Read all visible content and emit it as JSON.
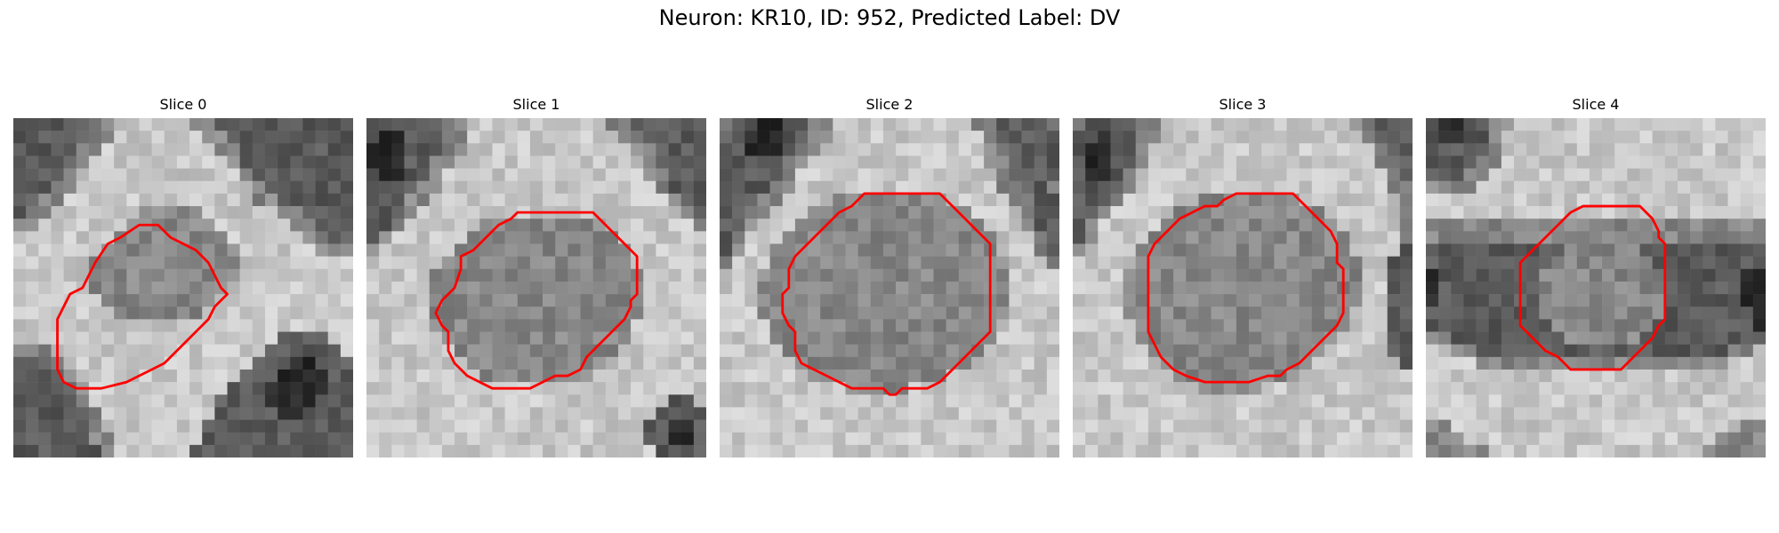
{
  "figure": {
    "title": "Neuron: KR10, ID: 952, Predicted Label: DV"
  },
  "slices": [
    {
      "title": "Slice 0",
      "image": "grayscale-microscopy-slice",
      "contour_color": "#ff0000",
      "seed": 11,
      "pattern": [
        "LLLLLLMMHHHHHHMMLLLLLLLLLLL",
        "LLLLLLMMHHHHHHHMMLLLLLLLLLL",
        "LLLLLMMHHHHHHHHHMMLLLLLLLLL",
        "LLLLLMHHHHHHHHHHHMLLLLLLLLL",
        "LLLLMHHHHHHHHHHHHHMLLLLLLLL",
        "LLLMMHHHHHHHHHHHHHHMLLLLLLL",
        "LLMMHHHHHHHHHHHHHHHMMLLLLLL",
        "LMMHHHHHHHMMMMMHHHHHHMMLLLL",
        "MMHHHHHHHMMMMMMMHHHHHHMMLLL",
        "HHHHHHHHMMMMMMMMMHHHHHHMMLL",
        "HHHHHHHMMMMMMMMMMMHHHHHHMMM",
        "HHHHHHMMMMMMMMMMMMHHHHHHHHH",
        "HHHHHHMMMMMMMMMMMMHHHHHHHHH",
        "HHHHHHMMMMMMMMMMMHHHHHHHHHH",
        "HHHHHHHMMMMMMMMMHHHHHHHHHHH",
        "HHHHHHHHMMMMMMMHHHHHHHHHHHH",
        "HHHHHHHHHHHHHHHHHHHHHHHHHHH",
        "HHHHHHHHHHHHHHHHHHHHHLLLLHH",
        "MMMHHHHHHHHHHHHHHHHHLLLLLLH",
        "LLLMHHHHHHHHHHHHHHHLLLDDLLL",
        "LLLLMHHHHHHHHHHHHHLLLDDDDLL",
        "LLLLLMHHHHHHHHHHHLLLDDDDDLL",
        "LLLLLMHHHHHHHHHHLLLLDDDDLLL",
        "LLLLLLMHHHHHHHHHLLLLLDDLLLL",
        "LLLLLLMHHHHHHHHLLLLLLLLLLLL",
        "LLLLLLMMHHHHHHHLLLLLLLLLLLL",
        "LLLLLLLMHHHHHHLLLLLLLLLLLLL"
      ],
      "contour": [
        [
          8.5,
          9.5
        ],
        [
          10,
          8.5
        ],
        [
          11.5,
          8.5
        ],
        [
          12.5,
          9.5
        ],
        [
          14.5,
          10.5
        ],
        [
          15.5,
          11.5
        ],
        [
          16,
          12.5
        ],
        [
          16.5,
          13.5
        ],
        [
          17,
          14
        ],
        [
          16,
          15
        ],
        [
          15.5,
          16
        ],
        [
          14,
          17.5
        ],
        [
          12,
          19.5
        ],
        [
          11,
          20
        ],
        [
          10,
          20.5
        ],
        [
          9,
          21
        ],
        [
          7,
          21.5
        ],
        [
          5,
          21.5
        ],
        [
          4,
          21
        ],
        [
          3.5,
          20
        ],
        [
          3.5,
          18
        ],
        [
          3.5,
          16
        ],
        [
          4,
          15
        ],
        [
          4.5,
          14
        ],
        [
          5.5,
          13.5
        ],
        [
          6,
          12.5
        ],
        [
          6.5,
          11.5
        ],
        [
          7.5,
          10
        ]
      ]
    },
    {
      "title": "Slice 1",
      "image": "grayscale-microscopy-slice",
      "contour_color": "#ff0000",
      "seed": 23,
      "pattern": [
        "LLLLLLMMHHHHHHHHHHHMMLLLLLL",
        "LDDLLLMMHHHHHHHHHHHHMMLLLLL",
        "DDDLLLMMHHHHHHHHHHHHHMMLLLL",
        "DDDLLMMHHHHHHHHHHHHHHHMLLLL",
        "LDDLLMHHHHHHHHHHHHHHHHMMLLL",
        "LLLLMMHHHHHHHHHHHHHHHHHMLLL",
        "LLLMMHHHHHHHHHHHHHHHHHHHMLL",
        "LLLMHHHHHHHHHHHHHHHHHHHHHML",
        "LLMHHHHHHMMMMMMMMMMHHHHHHHM",
        "LMHHHHHHMMMMMMMMMMMMHHHHHHH",
        "MHHHHHHMMMMMMMMMMMMMMHHHHHH",
        "HHHHHHMMMMMMMMMMMMMMMHHHHHH",
        "HHHHHMMMMMMMMMMMMMMMMMHHHHH",
        "HHHHHMMMMMMMMMMMMMMMMMHHHHH",
        "HHHHHMMMMMMMMMMMMMMMMMHHHHH",
        "HHHHHMMMMMMMMMMMMMMMMMHHHHH",
        "HHHHHMMMMMMMMMMMMMMMMHHHHHH",
        "HHHHHHMMMMMMMMMMMMMMMHHHHHH",
        "HHHHHHHMMMMMMMMMMMMMHHHHHHH",
        "HHHHHHHHMMMMMMMMMMMHHHHHHHH",
        "HHHHHHHHHMMMMMMMMMHHHHHHHHH",
        "HHHHHHHHHHHHHHHHHHHHHHHHHHH",
        "HHHHHHHHHHHHHHHHHHHHHHHHLLH",
        "HHHHHHHHHHHHHHHHHHHHHHHLLLL",
        "HHHHHHHHHHHHHHHHHHHHHHLLDDL",
        "HHHHHHHHHHHHHHHHHHHHHHLLDDL",
        "HHHHHHHHHHHHHHHHHHHHHHHLLLL"
      ],
      "contour": [
        [
          12,
          7.5
        ],
        [
          16,
          7.5
        ],
        [
          18,
          7.5
        ],
        [
          19,
          8.5
        ],
        [
          19.5,
          9
        ],
        [
          20.5,
          10
        ],
        [
          21.5,
          11
        ],
        [
          21.5,
          13
        ],
        [
          21.5,
          14
        ],
        [
          21,
          14.5
        ],
        [
          21,
          15
        ],
        [
          20.5,
          16
        ],
        [
          19.5,
          17
        ],
        [
          18.5,
          18
        ],
        [
          17.5,
          19
        ],
        [
          17,
          20
        ],
        [
          16,
          20.5
        ],
        [
          15,
          20.5
        ],
        [
          14,
          21
        ],
        [
          13,
          21.5
        ],
        [
          11,
          21.5
        ],
        [
          10,
          21.5
        ],
        [
          9,
          21
        ],
        [
          8,
          20.5
        ],
        [
          7,
          19.5
        ],
        [
          6.5,
          18.5
        ],
        [
          6.5,
          17
        ],
        [
          6,
          16.5
        ],
        [
          5.5,
          15.5
        ],
        [
          6,
          14.5
        ],
        [
          6.5,
          14
        ],
        [
          7,
          13.5
        ],
        [
          7.5,
          12
        ],
        [
          7.5,
          11
        ],
        [
          8.5,
          10.5
        ],
        [
          9.5,
          9.5
        ],
        [
          10.5,
          8.5
        ],
        [
          11.5,
          8
        ]
      ]
    },
    {
      "title": "Slice 2",
      "image": "grayscale-microscopy-slice",
      "contour_color": "#ff0000",
      "seed": 37,
      "pattern": [
        "MLLDDLLMMHHHHHHHHHHHMMLLLLM",
        "LLDDDLLMMHHHHHHHHHHHHMLLLLL",
        "LLDDDLMMHHHHHHHHHHHHHMMLLLL",
        "LLLLLMMHHHHHHHHHHHHHHMMLLLL",
        "LLLLLMHHHHHHHHHHHHHHHHMLLLL",
        "LLLLMMHHHHHHHHHHHHHHHHMMLLM",
        "LLLMMHHHHMMMMMMMMMHHHHHMMLL",
        "LLMMHHHMMMMMMMMMMMMMHHHHMLL",
        "LLMHHHMMMMMMMMMMMMMMMHHHMLL",
        "LMHHHMMMMMMMMMMMMMMMMMHHHML",
        "LMHHMMMMMMMMMMMMMMMMMMHHHML",
        "MHHHMMMMMMMMMMMMMMMMMMMHHHM",
        "HHHMMMMMMMMMMMMMMMMMMMMHHHH",
        "HHHMMMMMMMMMMMMMMMMMMMMHHHH",
        "HHHMMMMMMMMMMMMMMMMMMMMHHHH",
        "HHHMMMMMMMMMMMMMMMMMMMMHHHH",
        "HHHHMMMMMMMMMMMMMMMMMMHHHHH",
        "HHHHMMMMMMMMMMMMMMMMMMHHHHH",
        "HHHHHMMMMMMMMMMMMMMMMHHHHHH",
        "HHHHHHMMMMMMMMMMMMMMHHHHHHH",
        "HHHHHHHMMMMMMMMMMMHHHHHHHHH",
        "HHHHHHHHHHMMMMMHHHHHHHHHHHH",
        "HHHHHHHHHHHHHHHHHHHHHHHHHHH",
        "HHHHHHHHHHHHHHHHHHHHHHHHHHH",
        "HHHHHHHHHHHHHHHHHHHHHHHHHHH",
        "HHHHHHHHHHHHHHHHHHHHHHHHHHH",
        "HHHHHHHHHHHHHHHHHHHHHHHHHHH"
      ],
      "contour": [
        [
          11.5,
          6
        ],
        [
          14.5,
          6
        ],
        [
          17.5,
          6
        ],
        [
          18,
          6.5
        ],
        [
          18.5,
          7
        ],
        [
          19.5,
          8
        ],
        [
          20.5,
          9
        ],
        [
          21,
          9.5
        ],
        [
          21.5,
          10
        ],
        [
          21.5,
          11
        ],
        [
          21.5,
          13
        ],
        [
          21.5,
          15
        ],
        [
          21.5,
          17
        ],
        [
          21,
          17.5
        ],
        [
          20.5,
          18
        ],
        [
          19.5,
          19
        ],
        [
          18.5,
          20
        ],
        [
          17.5,
          21
        ],
        [
          16.5,
          21.5
        ],
        [
          15.5,
          21.5
        ],
        [
          14.5,
          21.5
        ],
        [
          14,
          22
        ],
        [
          13.5,
          22
        ],
        [
          13,
          21.5
        ],
        [
          12,
          21.5
        ],
        [
          10.5,
          21.5
        ],
        [
          9.5,
          21
        ],
        [
          8.5,
          20.5
        ],
        [
          7.5,
          20
        ],
        [
          6.5,
          19.5
        ],
        [
          6,
          18.5
        ],
        [
          6,
          17
        ],
        [
          5.5,
          16.5
        ],
        [
          5,
          15.5
        ],
        [
          5,
          14
        ],
        [
          5.5,
          13.5
        ],
        [
          5.5,
          12
        ],
        [
          6,
          11
        ],
        [
          6.5,
          10.5
        ],
        [
          7.5,
          9.5
        ],
        [
          8.5,
          8.5
        ],
        [
          9.5,
          7.5
        ],
        [
          10.5,
          7
        ],
        [
          11,
          6.5
        ]
      ]
    },
    {
      "title": "Slice 3",
      "image": "grayscale-microscopy-slice",
      "contour_color": "#ff0000",
      "seed": 53,
      "pattern": [
        "MLLLLMMHHHHHHHHHHHHHHHMMLLL",
        "LLDLLMMHHHHHHHHHHHHHHHHMLLL",
        "LDDLLMHHHHHHHHHHHHHHHHHHMLL",
        "LDDLLMHHHHHHHHHHHHHHHHHHMML",
        "LDDLMHHHHHHHHHHHHHHHHHHHHML",
        "LLLLMHHHHHHHHHHHHHHHHHHHHMM",
        "LLLMHHHHHHMMMMMMMMHHHHHHHHM",
        "LLMHHHHHMMMMMMMMMMMMHHHHHHM",
        "LMHHHHHMMMMMMMMMMMMMMHHHHHM",
        "LMHHHHMMMMMMMMMMMMMMMMHHHHM",
        "MHHHHMMMMMMMMMMMMMMMMMHHHHL",
        "HHHHHMMMMMMMMMMMMMMMMMMHHLL",
        "HHHHMMMMMMMMMMMMMMMMMMMHHLL",
        "HHHHMMMMMMMMMMMMMMMMMMMHHLL",
        "HHHHMMMMMMMMMMMMMMMMMMMHHLL",
        "HHHHMMMMMMMMMMMMMMMMMMHHHLL",
        "HHHHHMMMMMMMMMMMMMMMMMHHHLL",
        "HHHHHMMMMMMMMMMMMMMMMHHHHLL",
        "HHHHHHMMMMMMMMMMMMMMHHHHHLL",
        "HHHHHHHMMMMMMMMMMMMHHHHHHHL",
        "HHHHHHHHMMMMMMMMMMHHHHHHHHH",
        "HHHHHHHHHHMMMMMHHHHHHHHHHHH",
        "HHHHHHHHHHHHHHHHHHHHHHHHHHH",
        "HHHHHHHHHHHHHHHHHHHHHHHHHHH",
        "HHHHHHHHHHHHHHHHHHHHHHHHHHH",
        "HHHHHHHHHHHHHHHHHHHHHHHHHHH",
        "HHHHHHHHHHHHHHHHHHHHHHHHHHH"
      ],
      "contour": [
        [
          12,
          6.5
        ],
        [
          13,
          6
        ],
        [
          16,
          6
        ],
        [
          17.5,
          6
        ],
        [
          18.5,
          7
        ],
        [
          19.5,
          8
        ],
        [
          20.5,
          9
        ],
        [
          21,
          10
        ],
        [
          21,
          11.5
        ],
        [
          21.5,
          12
        ],
        [
          21.5,
          14
        ],
        [
          21.5,
          15.5
        ],
        [
          21,
          16.5
        ],
        [
          20,
          17.5
        ],
        [
          19,
          18.5
        ],
        [
          18,
          19.5
        ],
        [
          17,
          20
        ],
        [
          16.5,
          20.5
        ],
        [
          15.5,
          20.5
        ],
        [
          14,
          21
        ],
        [
          12,
          21
        ],
        [
          10.5,
          21
        ],
        [
          9,
          20.5
        ],
        [
          8,
          20
        ],
        [
          7,
          19
        ],
        [
          6.5,
          18
        ],
        [
          6,
          17
        ],
        [
          6,
          15
        ],
        [
          6,
          13
        ],
        [
          6,
          11
        ],
        [
          6.5,
          10
        ],
        [
          7.5,
          9
        ],
        [
          8.5,
          8
        ],
        [
          9.5,
          7.5
        ],
        [
          10.5,
          7
        ],
        [
          11.5,
          7
        ]
      ]
    },
    {
      "title": "Slice 4",
      "image": "grayscale-microscopy-slice",
      "contour_color": "#ff0000",
      "seed": 71,
      "pattern": [
        "LDDLLMMHHHHHHHHHHHHHHHHHHHH",
        "LDDLLMHHHHHHHHHHHHHHHHHHHHH",
        "LLLLLMHHHHHHHHHHHHHHHHHHHHH",
        "LLLLMMHHHHHHHHHHHHHHHHHHHHH",
        "LLLMMHHHHHHHHHHHHHHHHHHHHHH",
        "MMMMHHHHHHHHHHHHHHHHHHHHHHH",
        "HHHHHHHHHHHHHHHHHHHHHHHHHHH",
        "HHHHHHHHHHHHHHHHHHHHHHHHHHH",
        "MMMMMMMMMMMMMMMMMMMMMMMMMMM",
        "MMMMMMMMMMMMMMMMMMMMMMMMMMM",
        "LLLLLLLLLLLMMMMMMLLLLLLLLLL",
        "LLLLLLLLLLMMMMMMMMLLLLLLLLL",
        "DLLLLLLLLMMMMMMMMMMLLLLLLDD",
        "DLLLLLLLLMMMMMMMMMMLLLLLLDD",
        "DLLLLLLLLMMMMMMMMMMLLLLLLDD",
        "LLLLLLLLLMMMMMMMMMMLLLLLLLD",
        "LLLLLLLLLLMMMMMMMMLLLLLLLLD",
        "MMLLLLLLLLLMMMMMMLLLLLLLLLL",
        "HHMMLLLLLLLLLLLLLLLLLLLLMMH",
        "HHHHMMMMMMMMMMMMMMMMMMMMHHH",
        "HHHHHHHHHHHHHHHHHHHHHHHHHHH",
        "HHHHHHHHHHHHHHHHHHHHHHHHHHH",
        "HHHHHHHHHHHHHHHHHHHHHHHHHHH",
        "HHHHHHHHHHHHHHHHHHHHHHHHHHH",
        "MMHHHHHHHHHHHHHHHHHHHHHHHMM",
        "MMMHHHHHHHHHHHHHHHHHHHHMMMM",
        "MMMMMHHHHHHHHHHHHHHHHHMMMMM"
      ],
      "contour": [
        [
          12.5,
          7
        ],
        [
          15.5,
          7
        ],
        [
          17,
          7
        ],
        [
          18,
          8
        ],
        [
          18.5,
          9
        ],
        [
          18.5,
          9.5
        ],
        [
          19,
          10
        ],
        [
          19,
          11.5
        ],
        [
          19,
          13
        ],
        [
          19,
          15
        ],
        [
          19,
          16
        ],
        [
          18.5,
          16.5
        ],
        [
          18,
          17.5
        ],
        [
          17.5,
          18
        ],
        [
          16.5,
          19
        ],
        [
          15.5,
          20
        ],
        [
          14.5,
          20
        ],
        [
          13,
          20
        ],
        [
          11.5,
          20
        ],
        [
          11,
          19.5
        ],
        [
          10.5,
          19
        ],
        [
          9.5,
          18.5
        ],
        [
          8.5,
          17.5
        ],
        [
          7.5,
          16.5
        ],
        [
          7.5,
          15
        ],
        [
          7.5,
          13
        ],
        [
          7.5,
          11.5
        ],
        [
          8,
          11
        ],
        [
          8.5,
          10.5
        ],
        [
          9.5,
          9.5
        ],
        [
          10.5,
          8.5
        ],
        [
          11.5,
          7.5
        ]
      ]
    }
  ]
}
